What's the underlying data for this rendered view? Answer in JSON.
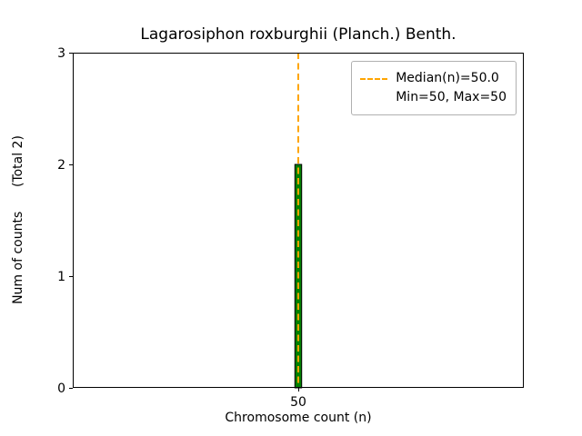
{
  "chart_data": {
    "type": "bar",
    "title": "Lagarosiphon roxburghii (Planch.) Benth.",
    "xlabel": "Chromosome count (n)",
    "ylabel": "Num of counts",
    "ylabel_annotation": "(Total 2)",
    "ylabel_full": "Num of counts      (Total 2)",
    "categories": [
      50
    ],
    "values": [
      2
    ],
    "bars": [
      {
        "x": 50,
        "count": 2
      }
    ],
    "xlim": [
      49.5,
      50.5
    ],
    "ylim": [
      0,
      3
    ],
    "xticks": [
      50
    ],
    "yticks": [
      0,
      1,
      2,
      3
    ],
    "bar_width": 0.015,
    "grid": false,
    "median_line": {
      "x": 50.0,
      "style": "dashed",
      "color": "#ffa500"
    },
    "stats": {
      "median": 50.0,
      "min": 50,
      "max": 50,
      "total_counts": 2
    },
    "colors": {
      "bar_fill": "#008000",
      "bar_edge": "#000000",
      "median": "#ffa500",
      "axes": "#000000"
    },
    "legend": {
      "position": "upper right",
      "entries": [
        {
          "label": "Median(n)=50.0",
          "sample": "dashed-line",
          "color": "#ffa500"
        },
        {
          "label": "Min=50, Max=50",
          "sample": "none"
        }
      ]
    }
  }
}
